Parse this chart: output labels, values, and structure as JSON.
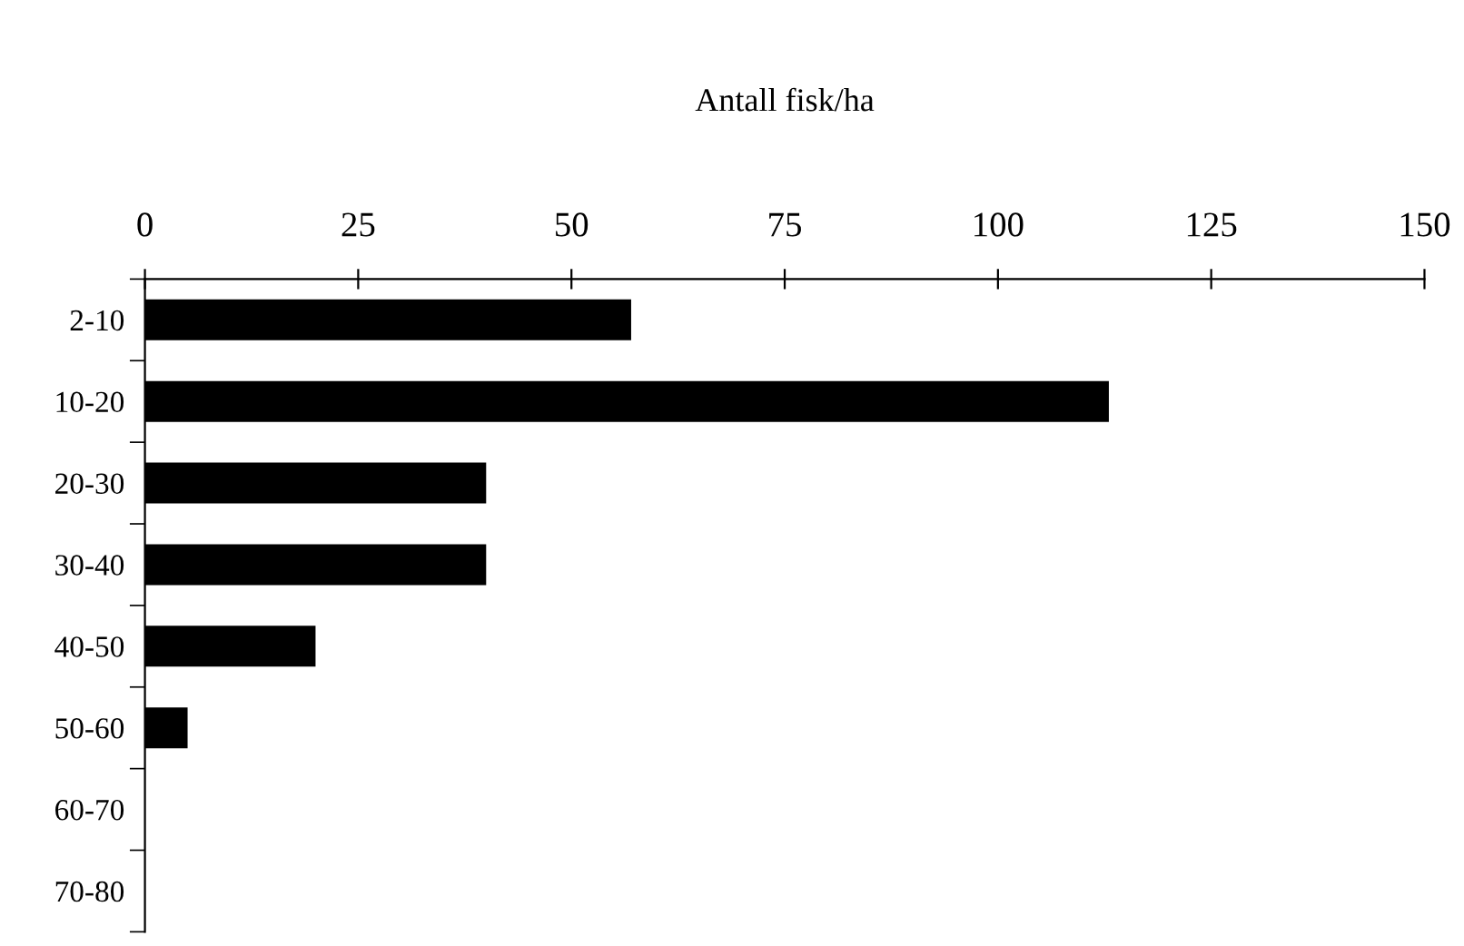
{
  "chart_data": {
    "type": "bar",
    "orientation": "horizontal",
    "xlabel": "Antall fisk/ha",
    "categories": [
      "2-10",
      "10-20",
      "20-30",
      "30-40",
      "40-50",
      "50-60",
      "60-70",
      "70-80"
    ],
    "values": [
      57,
      113,
      40,
      40,
      20,
      5,
      0,
      0
    ],
    "color": "#000000",
    "xlim": [
      0,
      150
    ],
    "xticks": [
      0,
      25,
      50,
      75,
      100,
      125,
      150
    ],
    "grid": false,
    "legend": false
  }
}
